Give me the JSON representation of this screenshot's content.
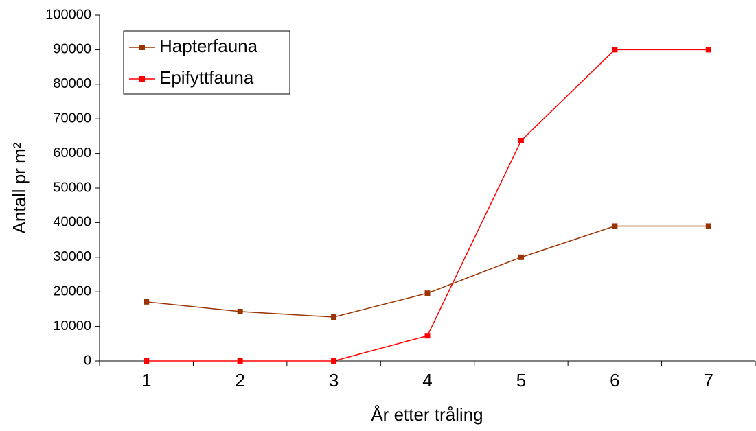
{
  "chart_data": {
    "type": "line",
    "x_label": "År etter tråling",
    "y_label": "Antall pr m²",
    "categories": [
      "1",
      "2",
      "3",
      "4",
      "5",
      "6",
      "7"
    ],
    "series": [
      {
        "name": "Hapterfauna",
        "color": "#993300",
        "values": [
          17100,
          14300,
          12700,
          19600,
          30000,
          39000,
          39000
        ]
      },
      {
        "name": "Epifyttfauna",
        "color": "#ff0000",
        "values": [
          0,
          0,
          0,
          7300,
          63700,
          90000,
          90000
        ]
      }
    ],
    "ylim": [
      0,
      100000
    ],
    "yticks": [
      0,
      10000,
      20000,
      30000,
      40000,
      50000,
      60000,
      70000,
      80000,
      90000,
      100000
    ],
    "legend": "upper-left"
  }
}
